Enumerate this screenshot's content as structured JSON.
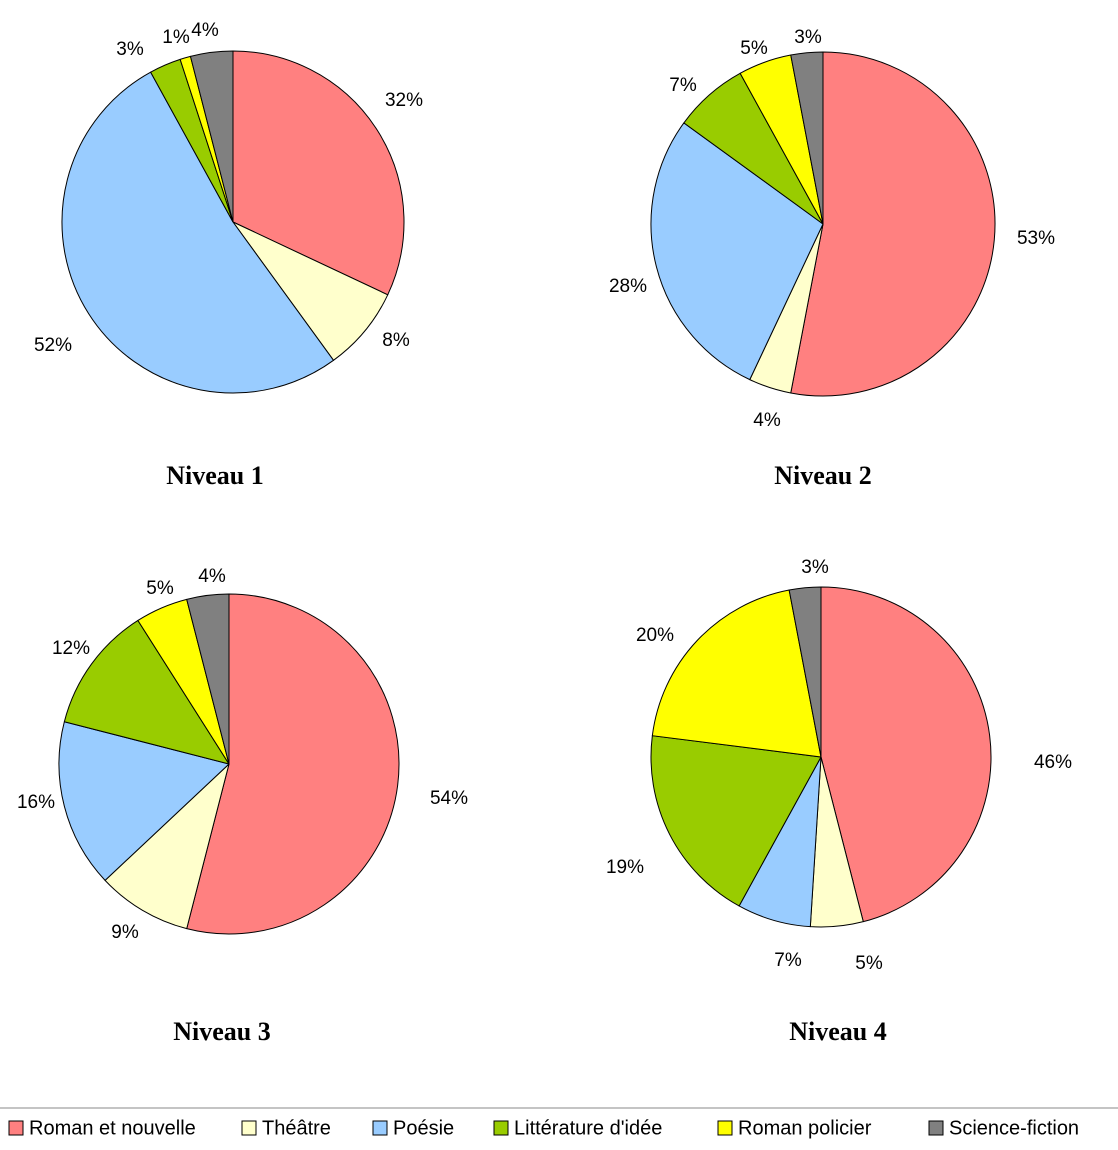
{
  "legend": {
    "placement": "bottom",
    "entries": [
      {
        "name": "Roman et nouvelle",
        "color": "#ff8080"
      },
      {
        "name": "Théâtre",
        "color": "#ffffcc"
      },
      {
        "name": "Poésie",
        "color": "#99ccff"
      },
      {
        "name": "Littérature d'idée",
        "color": "#99cc00"
      },
      {
        "name": "Roman policier",
        "color": "#ffff00"
      },
      {
        "name": "Science-fiction",
        "color": "#808080"
      }
    ]
  },
  "chart_data": [
    {
      "type": "pie",
      "title": "Niveau 1",
      "categories": [
        "Roman et nouvelle",
        "Théâtre",
        "Poésie",
        "Littérature d'idée",
        "Roman policier",
        "Science-fiction"
      ],
      "values": [
        32,
        8,
        52,
        3,
        1,
        4
      ],
      "labels": [
        "32%",
        "8%",
        "52%",
        "3%",
        "1%",
        "4%"
      ]
    },
    {
      "type": "pie",
      "title": "Niveau 2",
      "categories": [
        "Roman et nouvelle",
        "Théâtre",
        "Poésie",
        "Littérature d'idée",
        "Roman policier",
        "Science-fiction"
      ],
      "values": [
        53,
        4,
        28,
        7,
        5,
        3
      ],
      "labels": [
        "53%",
        "4%",
        "28%",
        "7%",
        "5%",
        "3%"
      ]
    },
    {
      "type": "pie",
      "title": "Niveau 3",
      "categories": [
        "Roman et nouvelle",
        "Théâtre",
        "Poésie",
        "Littérature d'idée",
        "Roman policier",
        "Science-fiction"
      ],
      "values": [
        54,
        9,
        16,
        12,
        5,
        4
      ],
      "labels": [
        "54%",
        "9%",
        "16%",
        "12%",
        "5%",
        "4%"
      ]
    },
    {
      "type": "pie",
      "title": "Niveau 4",
      "categories": [
        "Roman et nouvelle",
        "Théâtre",
        "Poésie",
        "Littérature d'idée",
        "Roman policier",
        "Science-fiction"
      ],
      "values": [
        46,
        5,
        7,
        19,
        20,
        3
      ],
      "labels": [
        "46%",
        "5%",
        "7%",
        "19%",
        "20%",
        "3%"
      ]
    }
  ]
}
